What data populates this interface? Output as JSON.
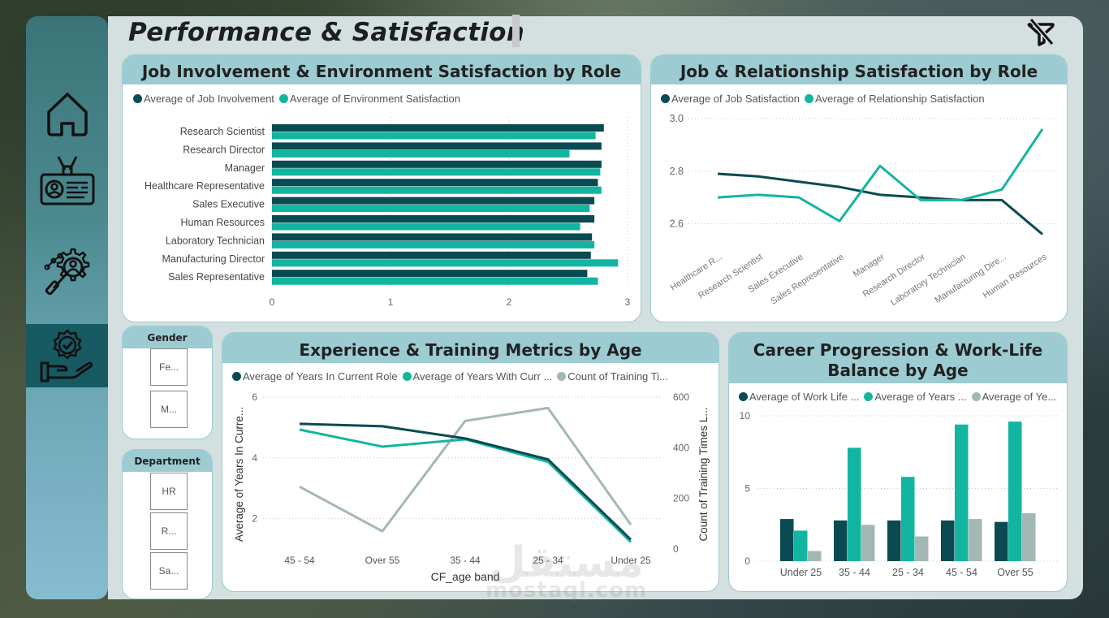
{
  "page": {
    "title": "Performance & Satisfaction",
    "clear_filter_icon": "clear-filter-icon"
  },
  "sidebar": {
    "items": [
      {
        "name": "home",
        "icon": "home-icon",
        "active": false
      },
      {
        "name": "employee-id",
        "icon": "id-badge-icon",
        "active": false
      },
      {
        "name": "analysis",
        "icon": "gear-search-icon",
        "active": false
      },
      {
        "name": "performance",
        "icon": "hand-badge-icon",
        "active": true
      }
    ]
  },
  "colors": {
    "dark": "#0a4a52",
    "teal": "#12b5a0",
    "gray": "#a3b8b5",
    "header": "#9ccbd2"
  },
  "slicers": {
    "gender": {
      "title": "Gender",
      "options": [
        "Fe...",
        "M..."
      ]
    },
    "department": {
      "title": "Department",
      "options": [
        "HR",
        "R...",
        "Sa..."
      ]
    }
  },
  "watermark": {
    "arabic": "مستقل",
    "latin": "mostaql.com"
  },
  "chart_data": [
    {
      "id": "job-involvement-env",
      "type": "bar",
      "orientation": "horizontal",
      "title": "Job Involvement & Environment Satisfaction by Role",
      "categories": [
        "Research Scientist",
        "Research Director",
        "Manager",
        "Healthcare Representative",
        "Sales Executive",
        "Human Resources",
        "Laboratory Technician",
        "Manufacturing Director",
        "Sales Representative"
      ],
      "series": [
        {
          "name": "Average of Job Involvement",
          "color": "#0a4a52",
          "values": [
            2.8,
            2.78,
            2.78,
            2.75,
            2.72,
            2.72,
            2.7,
            2.69,
            2.66
          ]
        },
        {
          "name": "Average of Environment Satisfaction",
          "color": "#12b5a0",
          "values": [
            2.73,
            2.51,
            2.77,
            2.78,
            2.68,
            2.6,
            2.72,
            2.92,
            2.75
          ]
        }
      ],
      "xlim": [
        0,
        3
      ],
      "xticks": [
        "0",
        "1",
        "2",
        "3"
      ],
      "legend": "top-left",
      "grid": true
    },
    {
      "id": "job-relationship",
      "type": "line",
      "title": "Job & Relationship Satisfaction by Role",
      "categories": [
        "Healthcare R...",
        "Research Scientist",
        "Sales Executive",
        "Sales Representative",
        "Manager",
        "Research Director",
        "Laboratory Technician",
        "Manufacturing Dire...",
        "Human Resources"
      ],
      "series": [
        {
          "name": "Average of Job Satisfaction",
          "color": "#0a4a52",
          "values": [
            2.79,
            2.78,
            2.76,
            2.74,
            2.71,
            2.7,
            2.69,
            2.69,
            2.56
          ]
        },
        {
          "name": "Average of Relationship Satisfaction",
          "color": "#12b5a0",
          "values": [
            2.7,
            2.71,
            2.7,
            2.61,
            2.82,
            2.69,
            2.69,
            2.73,
            2.96
          ]
        }
      ],
      "ylim": [
        2.55,
        3.0
      ],
      "yticks": [
        "2.6",
        "2.8",
        "3.0"
      ],
      "legend": "top-left",
      "grid": true
    },
    {
      "id": "experience-training",
      "type": "line",
      "title": "Experience & Training Metrics by Age",
      "xlabel": "CF_age band",
      "ylabel": "Average of Years In Curre...",
      "ylabel_right": "Count of Training Times L...",
      "categories": [
        "45 - 54",
        "Over 55",
        "35 - 44",
        "25 - 34",
        "Under 25"
      ],
      "series": [
        {
          "name": "Average of Years In Current Role",
          "axis": "left",
          "color": "#0a4a52",
          "values": [
            5.12,
            5.04,
            4.64,
            3.95,
            1.31
          ]
        },
        {
          "name": "Average of Years With Curr ...",
          "axis": "left",
          "color": "#12b5a0",
          "values": [
            4.93,
            4.37,
            4.61,
            3.87,
            1.23
          ]
        },
        {
          "name": "Count of Training Ti...",
          "axis": "right",
          "color": "#a3b8b5",
          "values": [
            246,
            70,
            506,
            557,
            96
          ]
        }
      ],
      "ylim": [
        1,
        6
      ],
      "yticks": [
        "2",
        "4",
        "6"
      ],
      "ylim_right": [
        0,
        600
      ],
      "yticks_right": [
        "0",
        "200",
        "400",
        "600"
      ],
      "legend": "top-left",
      "grid": true
    },
    {
      "id": "career-worklife",
      "type": "bar",
      "orientation": "vertical",
      "title": "Career Progression & Work-Life Balance by Age",
      "title_lines": [
        "Career Progression & Work-Life",
        "Balance by Age"
      ],
      "categories": [
        "Under 25",
        "35 - 44",
        "25 - 34",
        "45 - 54",
        "Over 55"
      ],
      "series": [
        {
          "name": "Average of Work Life ...",
          "color": "#0a4a52",
          "values": [
            2.9,
            2.8,
            2.8,
            2.8,
            2.7
          ]
        },
        {
          "name": "Average of Years ...",
          "color": "#12b5a0",
          "values": [
            2.1,
            7.8,
            5.8,
            9.4,
            9.6
          ]
        },
        {
          "name": "Average of Ye...",
          "color": "#a3b8b5",
          "values": [
            0.7,
            2.5,
            1.7,
            2.9,
            3.3
          ]
        }
      ],
      "ylim": [
        0,
        10
      ],
      "yticks": [
        "0",
        "5",
        "10"
      ],
      "legend": "top-left",
      "grid": true
    }
  ]
}
